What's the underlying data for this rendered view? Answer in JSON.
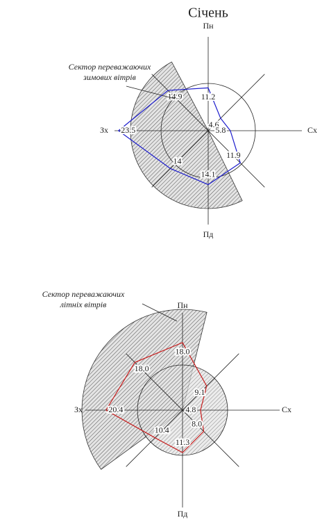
{
  "chart_data": [
    {
      "type": "radar",
      "title": "Січень",
      "categories": [
        "Пн",
        null,
        "Сх",
        null,
        "Пд",
        null,
        "Зх",
        null
      ],
      "values": [
        11.2,
        4.6,
        5.8,
        11.9,
        14.1,
        14.0,
        23.5,
        14.9
      ],
      "color": "#1a1acc",
      "annotation": [
        "Сектор переважаючих",
        "зимових вітрів"
      ]
    },
    {
      "type": "radar",
      "categories": [
        "Пн",
        null,
        "Сх",
        null,
        "Пд",
        null,
        "Зх",
        null
      ],
      "values": [
        18.0,
        9.1,
        4.8,
        8.0,
        11.3,
        10.4,
        20.4,
        18.0
      ],
      "value_labels": [
        "18.0",
        "9.1",
        "4.8",
        "8.0",
        "11.3",
        "10.4",
        "20.4",
        "18.0"
      ],
      "color": "#c81e1e",
      "annotation": [
        "Сектор переважаючих",
        "літніх вітрів"
      ]
    }
  ]
}
